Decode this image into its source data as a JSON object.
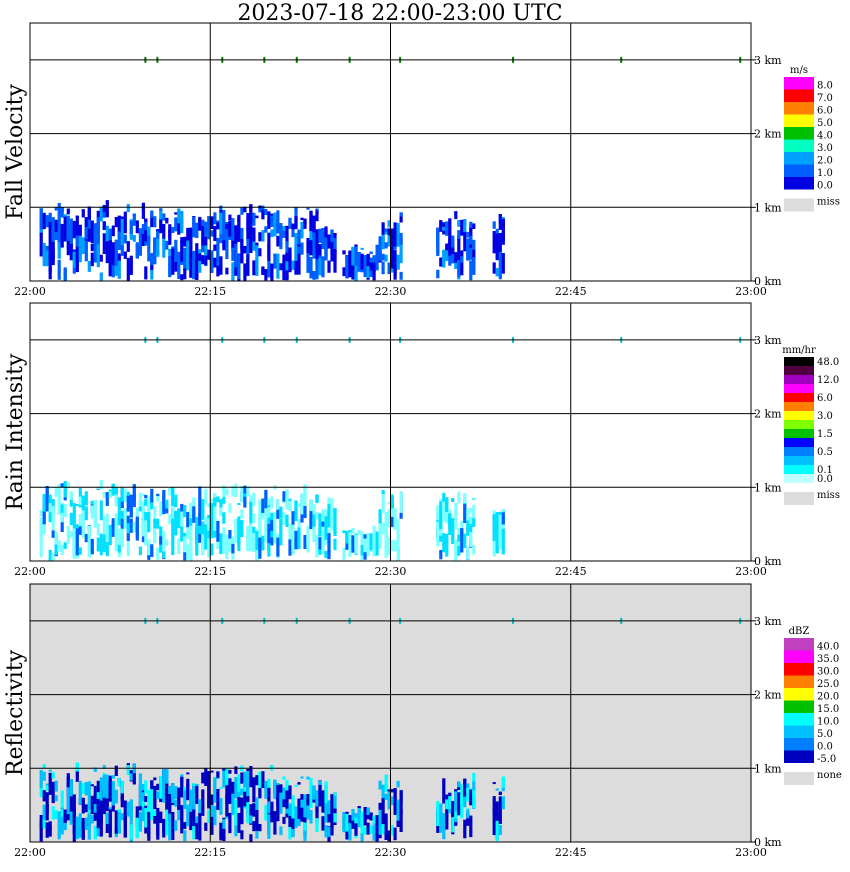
{
  "title": "2023-07-18   22:00-23:00 UTC",
  "chart_data": {
    "type": "heatmap",
    "time_range": [
      "22:00",
      "23:00"
    ],
    "x_ticks": [
      "22:00",
      "22:15",
      "22:30",
      "22:45",
      "23:00"
    ],
    "height_ticks": [
      "0 km",
      "1 km",
      "2 km",
      "3 km"
    ],
    "ylim_km": [
      0,
      3.5
    ],
    "grid": true,
    "panels": [
      {
        "ylabel": "Fall Velocity",
        "unit": "m/s",
        "background": "#ffffff",
        "scale": [
          {
            "label": "8.0",
            "color": "#ff00ff"
          },
          {
            "label": "7.0",
            "color": "#ff0000"
          },
          {
            "label": "6.0",
            "color": "#ff8000"
          },
          {
            "label": "5.0",
            "color": "#ffff00"
          },
          {
            "label": "4.0",
            "color": "#00c000"
          },
          {
            "label": "3.0",
            "color": "#00ffc0"
          },
          {
            "label": "2.0",
            "color": "#00a0ff"
          },
          {
            "label": "1.0",
            "color": "#0060ff"
          },
          {
            "label": "0.0",
            "color": "#0000e0"
          }
        ],
        "missing_label": "miss",
        "missing_color": "#dcdcdc"
      },
      {
        "ylabel": "Rain Intensity",
        "unit": "mm/hr",
        "background": "#ffffff",
        "scale": [
          {
            "label": "48.0",
            "color": "#000000"
          },
          {
            "label": "",
            "color": "#500040"
          },
          {
            "label": "12.0",
            "color": "#a000c0"
          },
          {
            "label": "",
            "color": "#ff00ff"
          },
          {
            "label": "6.0",
            "color": "#ff0000"
          },
          {
            "label": "",
            "color": "#ff8000"
          },
          {
            "label": "3.0",
            "color": "#ffff00"
          },
          {
            "label": "",
            "color": "#80ff00"
          },
          {
            "label": "1.5",
            "color": "#00c000"
          },
          {
            "label": "",
            "color": "#0000ff"
          },
          {
            "label": "0.5",
            "color": "#0080ff"
          },
          {
            "label": "",
            "color": "#00c0ff"
          },
          {
            "label": "0.1",
            "color": "#00ffff"
          },
          {
            "label": "0.0",
            "color": "#c0ffff"
          }
        ],
        "missing_label": "miss",
        "missing_color": "#dcdcdc"
      },
      {
        "ylabel": "Reflectivity",
        "unit": "dBZ",
        "background": "#dcdcdc",
        "scale": [
          {
            "label": "40.0",
            "color": "#c040c0"
          },
          {
            "label": "35.0",
            "color": "#ff00ff"
          },
          {
            "label": "30.0",
            "color": "#ff0000"
          },
          {
            "label": "25.0",
            "color": "#ff8000"
          },
          {
            "label": "20.0",
            "color": "#ffff00"
          },
          {
            "label": "15.0",
            "color": "#00c000"
          },
          {
            "label": "10.0",
            "color": "#00ffff"
          },
          {
            "label": "5.0",
            "color": "#00c0ff"
          },
          {
            "label": "0.0",
            "color": "#0080ff"
          },
          {
            "label": "-5.0",
            "color": "#0000c0"
          }
        ],
        "missing_label": "none",
        "missing_color": "#dcdcdc"
      }
    ],
    "precip_columns": [
      {
        "t0": 0.8,
        "t1": 9.5,
        "h": 1.1
      },
      {
        "t0": 9.5,
        "t1": 13.5,
        "h": 1.0
      },
      {
        "t0": 13.5,
        "t1": 24.0,
        "h": 1.05
      },
      {
        "t0": 24.0,
        "t1": 25.5,
        "h": 0.9
      },
      {
        "t0": 26.0,
        "t1": 29.0,
        "h": 0.5
      },
      {
        "t0": 29.0,
        "t1": 31.0,
        "h": 1.0
      },
      {
        "t0": 33.8,
        "t1": 37.0,
        "h": 0.95
      },
      {
        "t0": 38.5,
        "t1": 39.5,
        "h": 0.95
      }
    ],
    "cloud_top_points_km": 3.0,
    "cloud_top_times_min": [
      9.6,
      10.6,
      16.0,
      19.5,
      22.2,
      26.6,
      30.8,
      40.2,
      49.2,
      59.1
    ]
  }
}
